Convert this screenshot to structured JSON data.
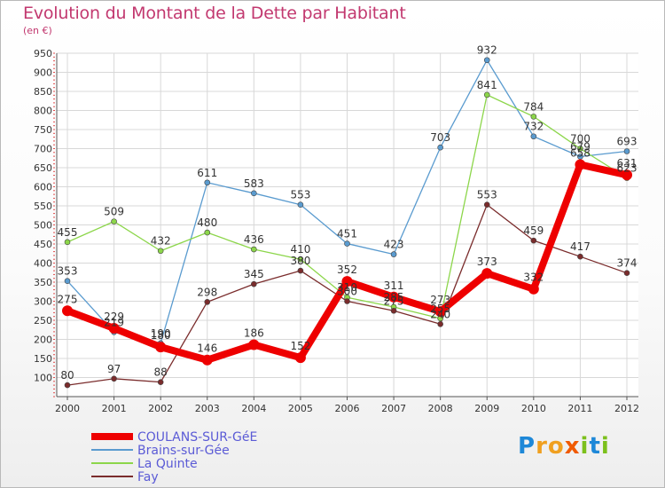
{
  "title": "Evolution du Montant de la Dette par Habitant",
  "unit": "(en €)",
  "logo": {
    "letters": [
      "P",
      "r",
      "o",
      "x",
      "i",
      "t",
      "i"
    ],
    "colors": [
      "#1e88d8",
      "#f0a020",
      "#f0a020",
      "#f05a00",
      "#7cc01c",
      "#1e88d8",
      "#7cc01c"
    ]
  },
  "chart_data": {
    "type": "line",
    "x": [
      "2000",
      "2001",
      "2002",
      "2003",
      "2004",
      "2005",
      "2006",
      "2007",
      "2008",
      "2009",
      "2010",
      "2011",
      "2012"
    ],
    "ylim": [
      50,
      950
    ],
    "yticks": [
      "100",
      "150",
      "200",
      "250",
      "300",
      "350",
      "400",
      "450",
      "500",
      "550",
      "600",
      "650",
      "700",
      "750",
      "800",
      "850",
      "900",
      "950"
    ],
    "grid": true,
    "legend_position": "bottom-left",
    "series": [
      {
        "name": "Brains-sur-Gée",
        "color": "#5a9bcf",
        "values": [
          353,
          219,
          190,
          611,
          583,
          553,
          451,
          423,
          703,
          932,
          732,
          679,
          693
        ],
        "labels": [
          "353",
          "219",
          "190",
          "611",
          "583",
          "553",
          "451",
          "423",
          "703",
          "932",
          "732",
          "679",
          "693"
        ]
      },
      {
        "name": "La Quinte",
        "color": "#8cd64a",
        "values": [
          455,
          509,
          432,
          480,
          436,
          410,
          310,
          285,
          255,
          841,
          784,
          700,
          623
        ],
        "labels": [
          "455",
          "509",
          "432",
          "480",
          "436",
          "410",
          "310",
          "285",
          "255",
          "841",
          "784",
          "700",
          "623"
        ]
      },
      {
        "name": "Fay",
        "color": "#7a2c2c",
        "values": [
          80,
          97,
          88,
          298,
          345,
          380,
          300,
          275,
          240,
          553,
          459,
          417,
          374
        ],
        "labels": [
          "80",
          "97",
          "88",
          "298",
          "345",
          "380",
          "300",
          "275",
          "240",
          "553",
          "459",
          "417",
          "374"
        ]
      },
      {
        "name": "COULANS-SUR-GéE",
        "color": "#ee0000",
        "values": [
          275,
          229,
          180,
          146,
          186,
          152,
          352,
          311,
          273,
          373,
          332,
          658,
          631
        ],
        "labels": [
          "275",
          "229",
          "180",
          "146",
          "186",
          "152",
          "352",
          "311",
          "273",
          "373",
          "332",
          "658",
          "631"
        ]
      }
    ]
  }
}
